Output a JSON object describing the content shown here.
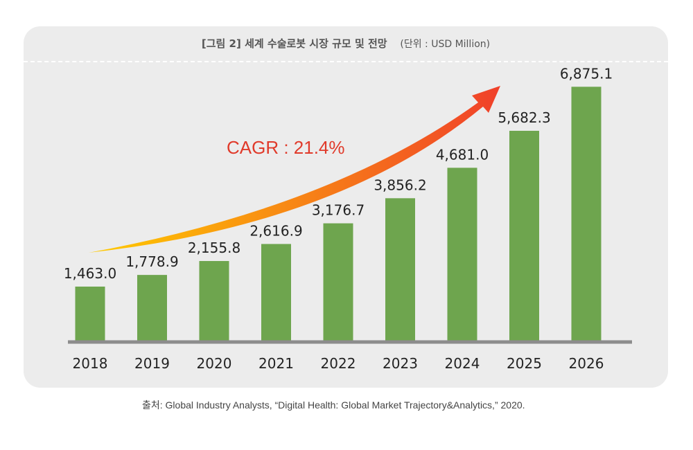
{
  "header": {
    "title": "[그림 2]  세계 수술로봇 시장 규모 및 전망",
    "unit": "(단위 : USD Million)"
  },
  "source": "출처: Global Industry Analysts, “Digital Health: Global Market Trajectory&Analytics,” 2020.",
  "annotation": {
    "text": "CAGR : 21.4%",
    "color": "#e03a2a"
  },
  "colors": {
    "bar": "#6ea54e",
    "axis": "#8c8c8c",
    "arrow_start": "#ffcc00",
    "arrow_end": "#f0402a"
  },
  "chart_data": {
    "type": "bar",
    "title": "[그림 2]  세계 수술로봇 시장 규모 및 전망",
    "categories": [
      "2018",
      "2019",
      "2020",
      "2021",
      "2022",
      "2023",
      "2024",
      "2025",
      "2026"
    ],
    "values": [
      1463.0,
      1778.9,
      2155.8,
      2616.9,
      3176.7,
      3856.2,
      4681.0,
      5682.3,
      6875.1
    ],
    "labels": [
      "1,463.0",
      "1,778.9",
      "2,155.8",
      "2,616.9",
      "3,176.7",
      "3,856.2",
      "4,681.0",
      "5,682.3",
      "6,875.1"
    ],
    "ylim": [
      0,
      7500
    ],
    "grid": false,
    "legend": "none",
    "annotation": "CAGR : 21.4%"
  }
}
